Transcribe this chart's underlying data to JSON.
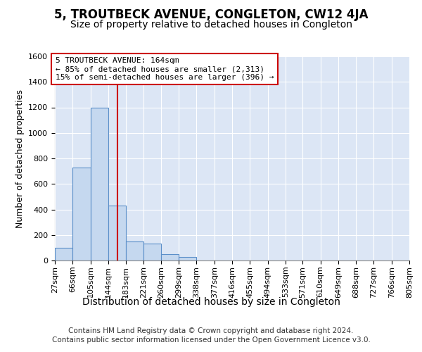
{
  "title": "5, TROUTBECK AVENUE, CONGLETON, CW12 4JA",
  "subtitle": "Size of property relative to detached houses in Congleton",
  "xlabel": "Distribution of detached houses by size in Congleton",
  "ylabel": "Number of detached properties",
  "footer_line1": "Contains HM Land Registry data © Crown copyright and database right 2024.",
  "footer_line2": "Contains public sector information licensed under the Open Government Licence v3.0.",
  "bin_edges": [
    27,
    66,
    105,
    144,
    183,
    221,
    260,
    299,
    338,
    377,
    416,
    455,
    494,
    533,
    571,
    610,
    649,
    688,
    727,
    766,
    805
  ],
  "bin_heights": [
    100,
    730,
    1200,
    430,
    150,
    130,
    50,
    28,
    0,
    0,
    0,
    0,
    0,
    0,
    0,
    0,
    0,
    0,
    0,
    0
  ],
  "bar_color": "#c5d8ef",
  "bar_edge_color": "#5b8fc9",
  "property_size": 164,
  "vline_color": "#cc0000",
  "annotation_text": "5 TROUTBECK AVENUE: 164sqm\n← 85% of detached houses are smaller (2,313)\n15% of semi-detached houses are larger (396) →",
  "annotation_box_color": "#cc0000",
  "ylim": [
    0,
    1600
  ],
  "yticks": [
    0,
    200,
    400,
    600,
    800,
    1000,
    1200,
    1400,
    1600
  ],
  "bg_color": "#ffffff",
  "plot_bg_color": "#dce6f5",
  "grid_color": "#ffffff",
  "title_fontsize": 12,
  "subtitle_fontsize": 10,
  "xlabel_fontsize": 10,
  "ylabel_fontsize": 9,
  "tick_fontsize": 8,
  "footer_fontsize": 7.5,
  "annotation_fontsize": 8
}
